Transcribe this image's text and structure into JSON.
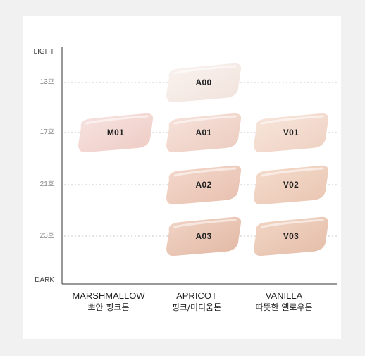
{
  "y_axis": {
    "top_label": "LIGHT",
    "bottom_label": "DARK",
    "levels": [
      "13호",
      "17호",
      "21호",
      "23호"
    ]
  },
  "columns": [
    {
      "name": "MARSHMALLOW",
      "subtitle": "뽀얀 핑크톤"
    },
    {
      "name": "APRICOT",
      "subtitle": "핑크/미디움톤"
    },
    {
      "name": "VANILLA",
      "subtitle": "따뜻한 옐로우톤"
    }
  ],
  "swatches": [
    {
      "code": "M01",
      "column": 0,
      "level": 1,
      "color_light": "#f7e4e2",
      "color_dark": "#eecbc3"
    },
    {
      "code": "A00",
      "column": 1,
      "level": 0,
      "color_light": "#faf3f0",
      "color_dark": "#f1e2db"
    },
    {
      "code": "A01",
      "column": 1,
      "level": 1,
      "color_light": "#f7e3dc",
      "color_dark": "#eccbbf"
    },
    {
      "code": "A02",
      "column": 1,
      "level": 2,
      "color_light": "#f4d9cd",
      "color_dark": "#e7bfae"
    },
    {
      "code": "A03",
      "column": 1,
      "level": 3,
      "color_light": "#f1d4c6",
      "color_dark": "#e2b8a4"
    },
    {
      "code": "V01",
      "column": 2,
      "level": 1,
      "color_light": "#f8e6dc",
      "color_dark": "#eed0c1"
    },
    {
      "code": "V02",
      "column": 2,
      "level": 2,
      "color_light": "#f5dccd",
      "color_dark": "#e9c5b1"
    },
    {
      "code": "V03",
      "column": 2,
      "level": 3,
      "color_light": "#f2d6c6",
      "color_dark": "#e4bda8"
    }
  ]
}
